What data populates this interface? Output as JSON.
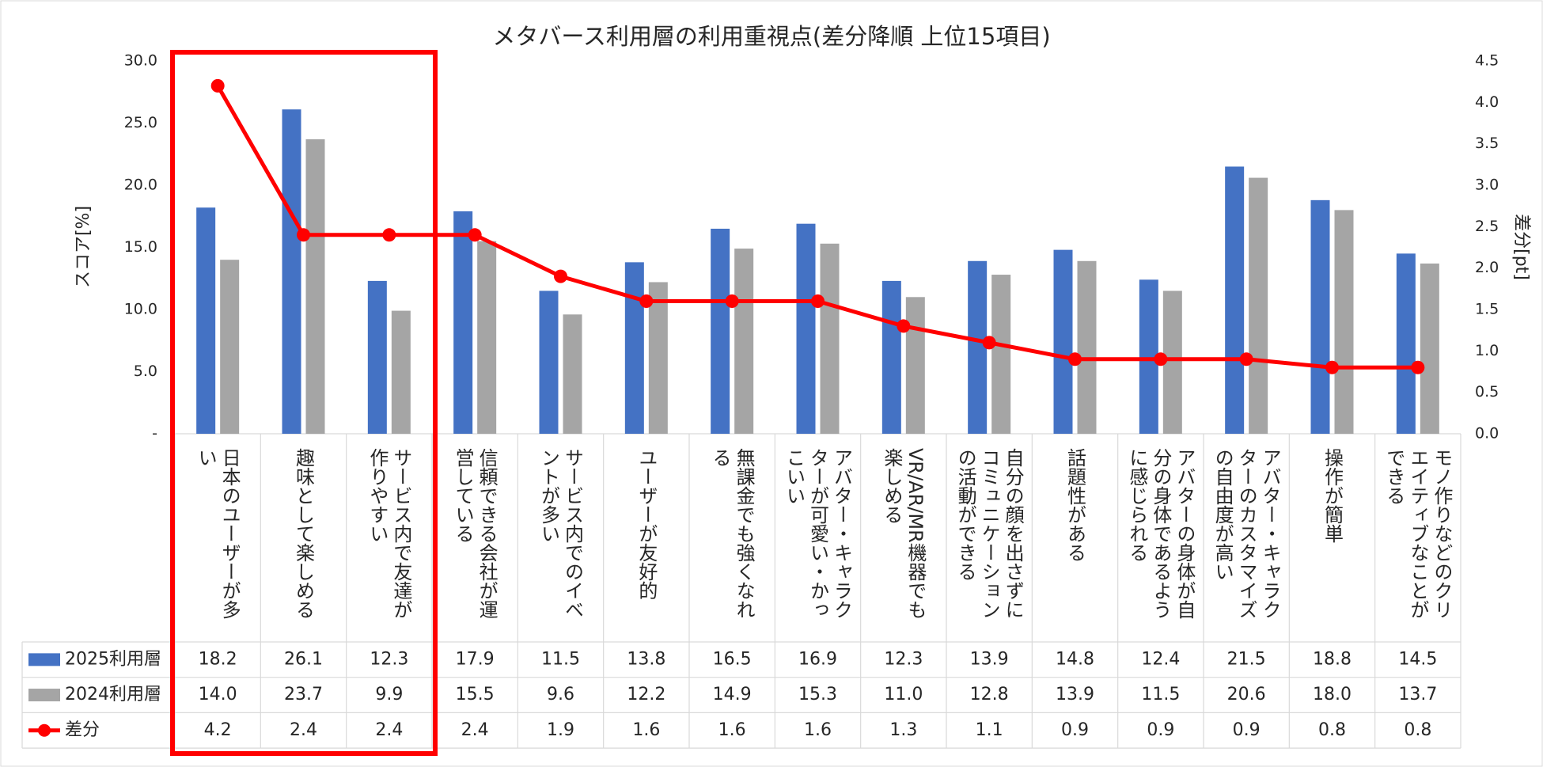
{
  "chart_data": {
    "type": "bar",
    "title": "メタバース利用層の利用重視点(差分降順 上位15項目)",
    "y_label": "スコア[%]",
    "y2_label": "差分[pt]",
    "categories": [
      "日本のユーザーが多い",
      "趣味として楽しめる",
      "サービス内で友達が作りやすい",
      "信頼できる会社が運営している",
      "サービス内でのイベントが多い",
      "ユーザーが友好的",
      "無課金でも強くなれる",
      "アバター・キャラクターが可愛い・かっこいい",
      "VR/AR/MR機器でも楽しめる",
      "自分の顔を出さずにコミュニケーションの活動ができる",
      "話題性がある",
      "アバターの身体が自分の身体であるように感じられる",
      "アバター・キャラクターのカスタマイズの自由度が高い",
      "操作が簡単",
      "モノ作りなどのクリエイティブなことができる"
    ],
    "series": [
      {
        "name": "2025利用層",
        "color": "#4472c4",
        "type": "bar",
        "values": [
          18.2,
          26.1,
          12.3,
          17.9,
          11.5,
          13.8,
          16.5,
          16.9,
          12.3,
          13.9,
          14.8,
          12.4,
          21.5,
          18.8,
          14.5
        ],
        "value_labels": [
          "18.2",
          "26.1",
          "12.3",
          "17.9",
          "11.5",
          "13.8",
          "16.5",
          "16.9",
          "12.3",
          "13.9",
          "14.8",
          "12.4",
          "21.5",
          "18.8",
          "14.5"
        ]
      },
      {
        "name": "2024利用層",
        "color": "#a5a5a5",
        "type": "bar",
        "values": [
          14.0,
          23.7,
          9.9,
          15.5,
          9.6,
          12.2,
          14.9,
          15.3,
          11.0,
          12.8,
          13.9,
          11.5,
          20.6,
          18.0,
          13.7
        ],
        "value_labels": [
          "14.0",
          "23.7",
          "9.9",
          "15.5",
          "9.6",
          "12.2",
          "14.9",
          "15.3",
          "11.0",
          "12.8",
          "13.9",
          "11.5",
          "20.6",
          "18.0",
          "13.7"
        ]
      },
      {
        "name": "差分",
        "color": "#ff0000",
        "type": "line",
        "axis": "y2",
        "values": [
          4.2,
          2.4,
          2.4,
          2.4,
          1.9,
          1.6,
          1.6,
          1.6,
          1.3,
          1.1,
          0.9,
          0.9,
          0.9,
          0.8,
          0.8
        ],
        "value_labels": [
          "4.2",
          "2.4",
          "2.4",
          "2.4",
          "1.9",
          "1.6",
          "1.6",
          "1.6",
          "1.3",
          "1.1",
          "0.9",
          "0.9",
          "0.9",
          "0.8",
          "0.8"
        ]
      }
    ],
    "ylim": [
      0,
      30
    ],
    "yticks": [
      {
        "value": 0,
        "label": "-"
      },
      {
        "value": 5,
        "label": "5.0"
      },
      {
        "value": 10,
        "label": "10.0"
      },
      {
        "value": 15,
        "label": "15.0"
      },
      {
        "value": 20,
        "label": "20.0"
      },
      {
        "value": 25,
        "label": "25.0"
      },
      {
        "value": 30,
        "label": "30.0"
      }
    ],
    "y2lim": [
      0,
      4.5
    ],
    "y2ticks": [
      {
        "value": 0,
        "label": "0.0"
      },
      0.5,
      {
        "value": 1,
        "label": "1.0"
      },
      1.5,
      {
        "value": 2,
        "label": "2.0"
      },
      2.5,
      {
        "value": 3,
        "label": "3.0"
      },
      3.5,
      {
        "value": 4,
        "label": "4.0"
      },
      4.5
    ],
    "grid": false,
    "data_table": true
  }
}
